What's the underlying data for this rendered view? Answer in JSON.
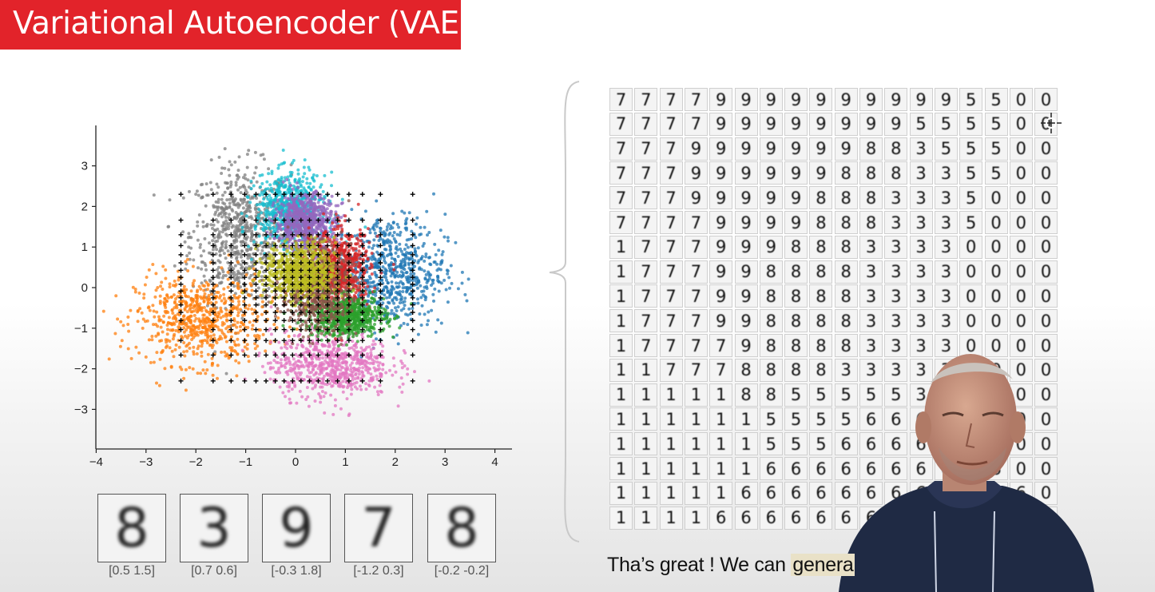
{
  "title": "Variational Autoencoder (VAE)",
  "colors": {
    "title_bg": "#e2232a",
    "highlight": "#e9e1c7",
    "clusters": [
      "#1f77b4",
      "#ff7f0e",
      "#2ca02c",
      "#d62728",
      "#9467bd",
      "#8c564b",
      "#e377c2",
      "#7f7f7f",
      "#bcbd22",
      "#17becf"
    ]
  },
  "chart_data": {
    "type": "scatter",
    "title": "",
    "xlabel": "",
    "ylabel": "",
    "xlim": [
      -4.2,
      4.4
    ],
    "ylim": [
      -3.9,
      3.9
    ],
    "x_ticks": [
      "−4",
      "−3",
      "−2",
      "−1",
      "0",
      "1",
      "2",
      "3",
      "4"
    ],
    "y_ticks": [
      "3",
      "2",
      "1",
      "0",
      "−1",
      "−2",
      "−3"
    ],
    "x_tick_values": [
      -4,
      -3,
      -2,
      -1,
      0,
      1,
      2,
      3,
      4
    ],
    "y_tick_values": [
      3,
      2,
      1,
      0,
      -1,
      -2,
      -3
    ],
    "grid": false,
    "clusters": [
      {
        "color": "#7f7f7f",
        "cx": -1.1,
        "cy": 1.3,
        "sx": 0.5,
        "sy": 0.85
      },
      {
        "color": "#ff7f0e",
        "cx": -1.9,
        "cy": -0.8,
        "sx": 0.65,
        "sy": 0.55
      },
      {
        "color": "#1f77b4",
        "cx": 1.9,
        "cy": 0.4,
        "sx": 0.55,
        "sy": 0.7
      },
      {
        "color": "#e377c2",
        "cx": 0.7,
        "cy": -1.9,
        "sx": 0.6,
        "sy": 0.4
      },
      {
        "color": "#17becf",
        "cx": -0.1,
        "cy": 1.9,
        "sx": 0.35,
        "sy": 0.45
      },
      {
        "color": "#9467bd",
        "cx": 0.2,
        "cy": 1.6,
        "sx": 0.3,
        "sy": 0.35
      },
      {
        "color": "#d62728",
        "cx": 0.9,
        "cy": 0.4,
        "sx": 0.3,
        "sy": 0.5
      },
      {
        "color": "#2ca02c",
        "cx": 1.0,
        "cy": -0.7,
        "sx": 0.4,
        "sy": 0.25
      },
      {
        "color": "#8c564b",
        "cx": 0.4,
        "cy": 0.0,
        "sx": 0.35,
        "sy": 0.5
      },
      {
        "color": "#bcbd22",
        "cx": 0.1,
        "cy": 0.4,
        "sx": 0.35,
        "sy": 0.35
      }
    ],
    "sample_grid": {
      "xmin": -2.3,
      "xmax": 2.35,
      "ymin": -2.3,
      "ymax": 2.3,
      "n": 18
    }
  },
  "thumbnails": [
    {
      "digit": "8",
      "label": "[0.5 1.5]"
    },
    {
      "digit": "3",
      "label": "[0.7 0.6]"
    },
    {
      "digit": "9",
      "label": "[-0.3  1.8]"
    },
    {
      "digit": "7",
      "label": "[-1.2  0.3]"
    },
    {
      "digit": "8",
      "label": "[-0.2 -0.2]"
    }
  ],
  "digit_grid": [
    "777799999999995500",
    "777799999999555500",
    "777999999988355500",
    "777999999888335500",
    "777999998883335000",
    "777799998883335000",
    "177799988833330000",
    "177799888833330000",
    "177799888833330000",
    "177799888833330000",
    "177779888833330000",
    "117778888333330000",
    "111118855555330000",
    "111111555566630000",
    "111111555666666000",
    "111111666666666600",
    "111116666666666660",
    "111166666666666660"
  ],
  "subtitle": {
    "before": "Tha’s great ! We can ",
    "highlight": "genera"
  }
}
